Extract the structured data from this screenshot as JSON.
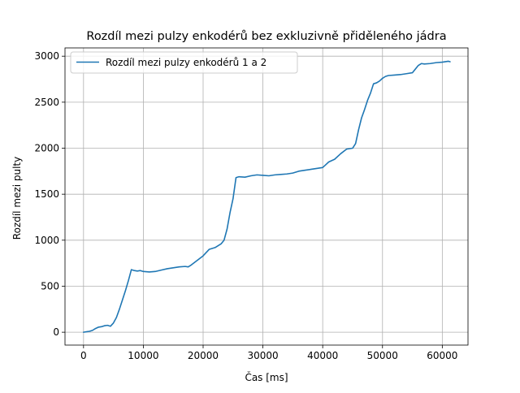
{
  "chart_data": {
    "type": "line",
    "title": "Rozdíl mezi pulzy enkodérů bez exkluzivně přiděleného jádra",
    "xlabel": "Čas [ms]",
    "ylabel": "Rozdíl mezi pulty",
    "xlim": [
      -3100,
      64300
    ],
    "ylim": [
      -140,
      3090
    ],
    "xticks": [
      0,
      10000,
      20000,
      30000,
      40000,
      50000,
      60000
    ],
    "xtick_labels": [
      "0",
      "10000",
      "20000",
      "30000",
      "40000",
      "50000",
      "60000"
    ],
    "yticks": [
      0,
      500,
      1000,
      1500,
      2000,
      2500,
      3000
    ],
    "ytick_labels": [
      "0",
      "500",
      "1000",
      "1500",
      "2000",
      "2500",
      "3000"
    ],
    "grid": true,
    "legend_position": "top-left",
    "series": [
      {
        "name": "Rozdíl mezi pulzy enkodérů 1 a 2",
        "color": "#1f77b4",
        "x": [
          0,
          500,
          1000,
          1500,
          2000,
          2500,
          3000,
          3500,
          4000,
          4500,
          5000,
          5500,
          6000,
          6500,
          7000,
          7500,
          8000,
          8500,
          9000,
          9500,
          10000,
          11000,
          12000,
          13000,
          14000,
          15000,
          16000,
          17000,
          17500,
          18000,
          19000,
          20000,
          21000,
          22000,
          23000,
          23500,
          24000,
          24500,
          25000,
          25500,
          26000,
          27000,
          28000,
          29000,
          30000,
          31000,
          32000,
          33000,
          34000,
          35000,
          36000,
          37000,
          38000,
          39000,
          40000,
          40500,
          41000,
          42000,
          43000,
          44000,
          45000,
          45500,
          46000,
          46500,
          47000,
          47500,
          48000,
          48500,
          49000,
          49500,
          50000,
          50500,
          51000,
          52000,
          53000,
          54000,
          55000,
          56000,
          56500,
          57000,
          58000,
          59000,
          60000,
          61000,
          61300
        ],
        "y": [
          0,
          5,
          10,
          20,
          40,
          55,
          60,
          70,
          75,
          65,
          100,
          160,
          250,
          350,
          450,
          560,
          680,
          670,
          665,
          670,
          660,
          655,
          660,
          675,
          690,
          700,
          710,
          715,
          710,
          730,
          780,
          830,
          900,
          920,
          960,
          1000,
          1120,
          1300,
          1450,
          1680,
          1690,
          1685,
          1700,
          1710,
          1705,
          1700,
          1710,
          1715,
          1720,
          1730,
          1750,
          1760,
          1770,
          1780,
          1790,
          1820,
          1850,
          1880,
          1940,
          1990,
          2000,
          2050,
          2200,
          2330,
          2420,
          2520,
          2600,
          2700,
          2710,
          2730,
          2760,
          2780,
          2790,
          2795,
          2800,
          2810,
          2820,
          2900,
          2920,
          2915,
          2920,
          2930,
          2935,
          2945,
          2940
        ]
      }
    ]
  }
}
